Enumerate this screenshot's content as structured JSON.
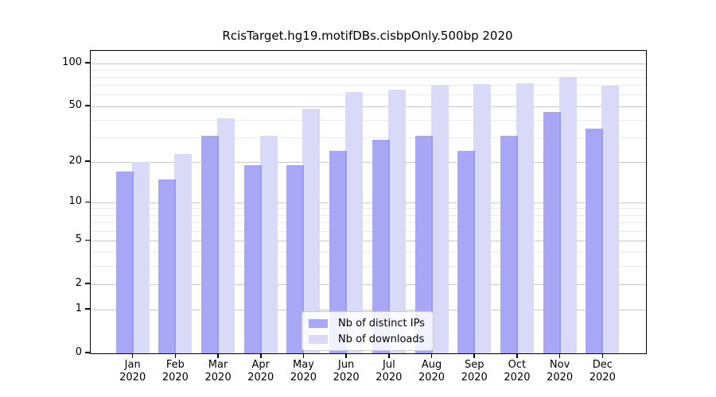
{
  "title": "RcisTarget.hg19.motifDBs.cisbpOnly.500bp 2020",
  "chart_data": {
    "type": "bar",
    "y_scale": "log10(1+x), 0 baseline",
    "categories": [
      "Jan 2020",
      "Feb 2020",
      "Mar 2020",
      "Apr 2020",
      "May 2020",
      "Jun 2020",
      "Jul 2020",
      "Aug 2020",
      "Sep 2020",
      "Oct 2020",
      "Nov 2020",
      "Dec 2020"
    ],
    "series": [
      {
        "name": "Nb of distinct IPs",
        "color": "#a7a7f5",
        "values": [
          17,
          15,
          31,
          19,
          19,
          24,
          29,
          31,
          24,
          31,
          46,
          35
        ]
      },
      {
        "name": "Nb of downloads",
        "color": "#d9d9f8",
        "values": [
          20,
          23,
          41,
          31,
          48,
          63,
          66,
          71,
          72,
          73,
          81,
          70
        ]
      }
    ],
    "yticks": [
      0,
      1,
      2,
      5,
      10,
      20,
      50,
      100
    ],
    "yticks_minor": [
      3,
      4,
      6,
      7,
      8,
      9,
      30,
      40,
      60,
      70,
      80,
      90
    ],
    "ylim": [
      0,
      120
    ],
    "grid": true,
    "legend_position": "lower center"
  },
  "colors": {
    "bar_overlap_seam": "#9a9aee",
    "grid_major": "#c9c9c9",
    "grid_minor": "#eaeaea",
    "axis": "#000000",
    "background": "#ffffff"
  }
}
